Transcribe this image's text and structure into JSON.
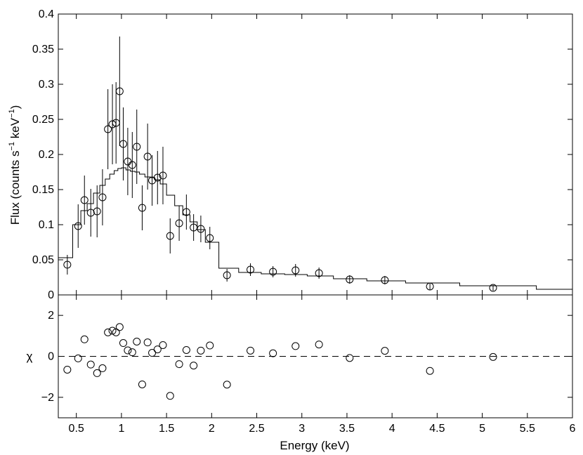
{
  "chart_data": [
    {
      "type": "scatter",
      "panel": "spectrum",
      "ylabel": "Flux (counts s−1 keV−1)",
      "ylabel_parts": {
        "main": "Flux (counts s",
        "exp1": "−1",
        "mid": " keV",
        "exp2": "−1",
        "end": ")"
      },
      "xlim": [
        0.3,
        6
      ],
      "ylim": [
        0,
        0.4
      ],
      "y_tick_labels": [
        "0",
        "0.05",
        "0.1",
        "0.15",
        "0.2",
        "0.25",
        "0.3",
        "0.35",
        "0.4"
      ],
      "y_ticks": [
        0,
        0.05,
        0.1,
        0.15,
        0.2,
        0.25,
        0.3,
        0.35,
        0.4
      ],
      "series": [
        {
          "kind": "data_points_with_errorbars",
          "points": [
            {
              "x": 0.4,
              "y": 0.043,
              "err": 0.014
            },
            {
              "x": 0.52,
              "y": 0.098,
              "err": 0.031
            },
            {
              "x": 0.59,
              "y": 0.135,
              "err": 0.035
            },
            {
              "x": 0.66,
              "y": 0.117,
              "err": 0.034
            },
            {
              "x": 0.73,
              "y": 0.119,
              "err": 0.037
            },
            {
              "x": 0.79,
              "y": 0.139,
              "err": 0.04
            },
            {
              "x": 0.85,
              "y": 0.236,
              "err": 0.057
            },
            {
              "x": 0.9,
              "y": 0.243,
              "err": 0.057
            },
            {
              "x": 0.94,
              "y": 0.245,
              "err": 0.058
            },
            {
              "x": 0.98,
              "y": 0.29,
              "err": 0.078
            },
            {
              "x": 1.02,
              "y": 0.215,
              "err": 0.052
            },
            {
              "x": 1.07,
              "y": 0.19,
              "err": 0.048
            },
            {
              "x": 1.12,
              "y": 0.185,
              "err": 0.047
            },
            {
              "x": 1.17,
              "y": 0.211,
              "err": 0.053
            },
            {
              "x": 1.23,
              "y": 0.124,
              "err": 0.032
            },
            {
              "x": 1.29,
              "y": 0.197,
              "err": 0.047
            },
            {
              "x": 1.34,
              "y": 0.163,
              "err": 0.036
            },
            {
              "x": 1.4,
              "y": 0.167,
              "err": 0.038
            },
            {
              "x": 1.46,
              "y": 0.17,
              "err": 0.041
            },
            {
              "x": 1.54,
              "y": 0.084,
              "err": 0.025
            },
            {
              "x": 1.64,
              "y": 0.102,
              "err": 0.025
            },
            {
              "x": 1.72,
              "y": 0.118,
              "err": 0.025
            },
            {
              "x": 1.8,
              "y": 0.096,
              "err": 0.019
            },
            {
              "x": 1.88,
              "y": 0.094,
              "err": 0.019
            },
            {
              "x": 1.98,
              "y": 0.081,
              "err": 0.016
            },
            {
              "x": 2.17,
              "y": 0.028,
              "err": 0.009
            },
            {
              "x": 2.43,
              "y": 0.036,
              "err": 0.009
            },
            {
              "x": 2.68,
              "y": 0.033,
              "err": 0.008
            },
            {
              "x": 2.93,
              "y": 0.035,
              "err": 0.009
            },
            {
              "x": 3.19,
              "y": 0.031,
              "err": 0.008
            },
            {
              "x": 3.53,
              "y": 0.022,
              "err": 0.006
            },
            {
              "x": 3.92,
              "y": 0.021,
              "err": 0.006
            },
            {
              "x": 4.42,
              "y": 0.012,
              "err": 0.005
            },
            {
              "x": 5.12,
              "y": 0.01,
              "err": 0.004
            }
          ]
        },
        {
          "kind": "model_step",
          "x_edges": [
            0.3,
            0.46,
            0.55,
            0.62,
            0.69,
            0.76,
            0.82,
            0.87,
            0.92,
            0.96,
            1.0,
            1.05,
            1.1,
            1.15,
            1.2,
            1.26,
            1.32,
            1.37,
            1.43,
            1.5,
            1.59,
            1.68,
            1.76,
            1.84,
            1.93,
            2.08,
            2.3,
            2.55,
            2.81,
            3.06,
            3.35,
            3.72,
            4.15,
            4.75,
            5.6,
            6.0
          ],
          "y": [
            0.053,
            0.1,
            0.12,
            0.13,
            0.145,
            0.156,
            0.165,
            0.172,
            0.177,
            0.18,
            0.181,
            0.178,
            0.176,
            0.175,
            0.172,
            0.168,
            0.167,
            0.164,
            0.158,
            0.142,
            0.127,
            0.114,
            0.104,
            0.093,
            0.075,
            0.038,
            0.032,
            0.03,
            0.029,
            0.027,
            0.023,
            0.02,
            0.017,
            0.013,
            0.008,
            0.005
          ]
        }
      ]
    },
    {
      "type": "scatter",
      "panel": "residuals",
      "ylabel": "χ",
      "xlabel": "Energy (keV)",
      "xlim": [
        0.3,
        6
      ],
      "ylim": [
        -3,
        3
      ],
      "y_ticks": [
        -2,
        0,
        2
      ],
      "y_tick_labels": [
        "−2",
        "0",
        "2"
      ],
      "x_ticks": [
        0.5,
        1,
        1.5,
        2,
        2.5,
        3,
        3.5,
        4,
        4.5,
        5,
        5.5,
        6
      ],
      "x_tick_labels": [
        "0.5",
        "1",
        "1.5",
        "2",
        "2.5",
        "3",
        "3.5",
        "4",
        "4.5",
        "5",
        "5.5",
        "6"
      ],
      "reference_line": {
        "y": 0,
        "style": "dashed"
      },
      "points": [
        {
          "x": 0.4,
          "y": -0.65
        },
        {
          "x": 0.52,
          "y": -0.1
        },
        {
          "x": 0.59,
          "y": 0.83
        },
        {
          "x": 0.66,
          "y": -0.4
        },
        {
          "x": 0.73,
          "y": -0.82
        },
        {
          "x": 0.79,
          "y": -0.58
        },
        {
          "x": 0.85,
          "y": 1.17
        },
        {
          "x": 0.9,
          "y": 1.25
        },
        {
          "x": 0.94,
          "y": 1.17
        },
        {
          "x": 0.98,
          "y": 1.43
        },
        {
          "x": 1.02,
          "y": 0.65
        },
        {
          "x": 1.07,
          "y": 0.29
        },
        {
          "x": 1.12,
          "y": 0.2
        },
        {
          "x": 1.17,
          "y": 0.72
        },
        {
          "x": 1.23,
          "y": -1.37
        },
        {
          "x": 1.29,
          "y": 0.68
        },
        {
          "x": 1.34,
          "y": 0.17
        },
        {
          "x": 1.4,
          "y": 0.34
        },
        {
          "x": 1.46,
          "y": 0.55
        },
        {
          "x": 1.54,
          "y": -1.93
        },
        {
          "x": 1.64,
          "y": -0.38
        },
        {
          "x": 1.72,
          "y": 0.31
        },
        {
          "x": 1.8,
          "y": -0.45
        },
        {
          "x": 1.88,
          "y": 0.28
        },
        {
          "x": 1.98,
          "y": 0.53
        },
        {
          "x": 2.17,
          "y": -1.38
        },
        {
          "x": 2.43,
          "y": 0.28
        },
        {
          "x": 2.68,
          "y": 0.15
        },
        {
          "x": 2.93,
          "y": 0.5
        },
        {
          "x": 3.19,
          "y": 0.58
        },
        {
          "x": 3.53,
          "y": -0.08
        },
        {
          "x": 3.92,
          "y": 0.27
        },
        {
          "x": 4.42,
          "y": -0.71
        },
        {
          "x": 5.12,
          "y": -0.03
        }
      ]
    }
  ]
}
